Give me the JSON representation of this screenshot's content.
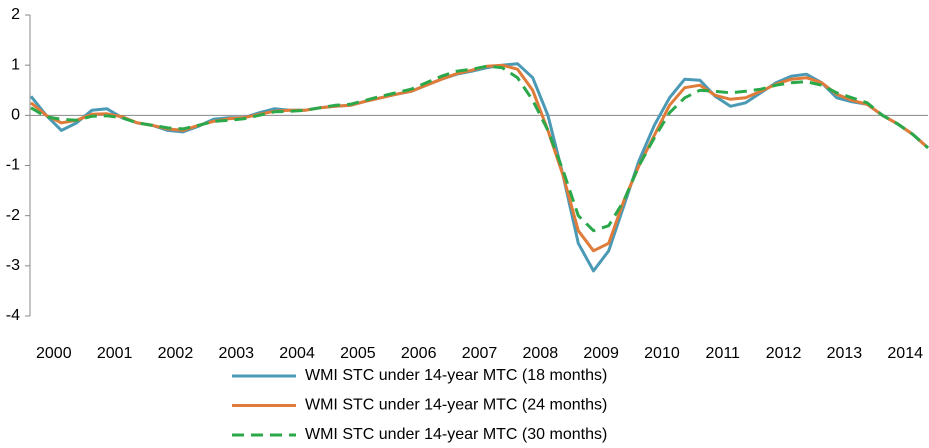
{
  "chart_data": {
    "type": "line",
    "categories": [
      "2000",
      null,
      null,
      null,
      "2001",
      null,
      null,
      null,
      "2002",
      null,
      null,
      null,
      "2003",
      null,
      null,
      null,
      "2004",
      null,
      null,
      null,
      "2005",
      null,
      null,
      null,
      "2006",
      null,
      null,
      null,
      "2007",
      null,
      null,
      null,
      "2008",
      null,
      null,
      null,
      "2009",
      null,
      null,
      null,
      "2010",
      null,
      null,
      null,
      "2011",
      null,
      null,
      null,
      "2012",
      null,
      null,
      null,
      "2013",
      null,
      null,
      null,
      "2014",
      null,
      null,
      null
    ],
    "series": [
      {
        "name": "WMI STC under 14-year MTC (18 months)",
        "color": "#4a99b5",
        "dash": "solid",
        "values": [
          0.38,
          0.0,
          -0.3,
          -0.15,
          0.1,
          0.13,
          -0.05,
          -0.15,
          -0.2,
          -0.3,
          -0.33,
          -0.22,
          -0.08,
          -0.05,
          -0.05,
          0.05,
          0.13,
          0.1,
          0.1,
          0.15,
          0.18,
          0.2,
          0.28,
          0.35,
          0.42,
          0.48,
          0.6,
          0.72,
          0.82,
          0.88,
          0.95,
          1.0,
          1.03,
          0.75,
          0.0,
          -1.2,
          -2.55,
          -3.1,
          -2.7,
          -1.8,
          -0.9,
          -0.2,
          0.35,
          0.72,
          0.7,
          0.38,
          0.18,
          0.25,
          0.45,
          0.65,
          0.78,
          0.82,
          0.65,
          0.35,
          0.27,
          0.22,
          0.0,
          -0.17,
          -0.38,
          -0.65
        ]
      },
      {
        "name": "WMI STC under 14-year MTC (24 months)",
        "color": "#e07b39",
        "dash": "solid",
        "values": [
          0.25,
          0.0,
          -0.15,
          -0.1,
          0.02,
          0.03,
          -0.03,
          -0.15,
          -0.2,
          -0.27,
          -0.3,
          -0.2,
          -0.12,
          -0.07,
          -0.05,
          0.02,
          0.08,
          0.1,
          0.1,
          0.15,
          0.18,
          0.2,
          0.28,
          0.35,
          0.42,
          0.48,
          0.6,
          0.72,
          0.83,
          0.9,
          0.98,
          1.0,
          0.92,
          0.5,
          -0.3,
          -1.2,
          -2.3,
          -2.7,
          -2.55,
          -1.7,
          -1.0,
          -0.4,
          0.2,
          0.55,
          0.6,
          0.4,
          0.32,
          0.35,
          0.48,
          0.62,
          0.72,
          0.75,
          0.65,
          0.42,
          0.3,
          0.22,
          0.0,
          -0.17,
          -0.38,
          -0.65
        ]
      },
      {
        "name": "WMI STC under 14-year MTC (30 months)",
        "color": "#2aa84a",
        "dash": "dashed",
        "values": [
          0.15,
          -0.03,
          -0.08,
          -0.1,
          -0.02,
          -0.01,
          -0.05,
          -0.15,
          -0.2,
          -0.25,
          -0.27,
          -0.2,
          -0.12,
          -0.1,
          -0.07,
          0.0,
          0.07,
          0.08,
          0.1,
          0.15,
          0.2,
          0.22,
          0.3,
          0.38,
          0.45,
          0.52,
          0.65,
          0.78,
          0.88,
          0.92,
          0.98,
          0.95,
          0.75,
          0.3,
          -0.3,
          -1.1,
          -2.0,
          -2.3,
          -2.2,
          -1.7,
          -1.0,
          -0.45,
          0.05,
          0.35,
          0.5,
          0.48,
          0.45,
          0.48,
          0.52,
          0.6,
          0.65,
          0.67,
          0.6,
          0.45,
          0.35,
          0.25,
          0.0,
          -0.17,
          -0.38,
          -0.65
        ]
      }
    ],
    "ylim": [
      -4,
      2
    ],
    "yticks": [
      -4,
      -3,
      -2,
      -1,
      0,
      1,
      2
    ],
    "grid": false,
    "legend": "bottom"
  }
}
